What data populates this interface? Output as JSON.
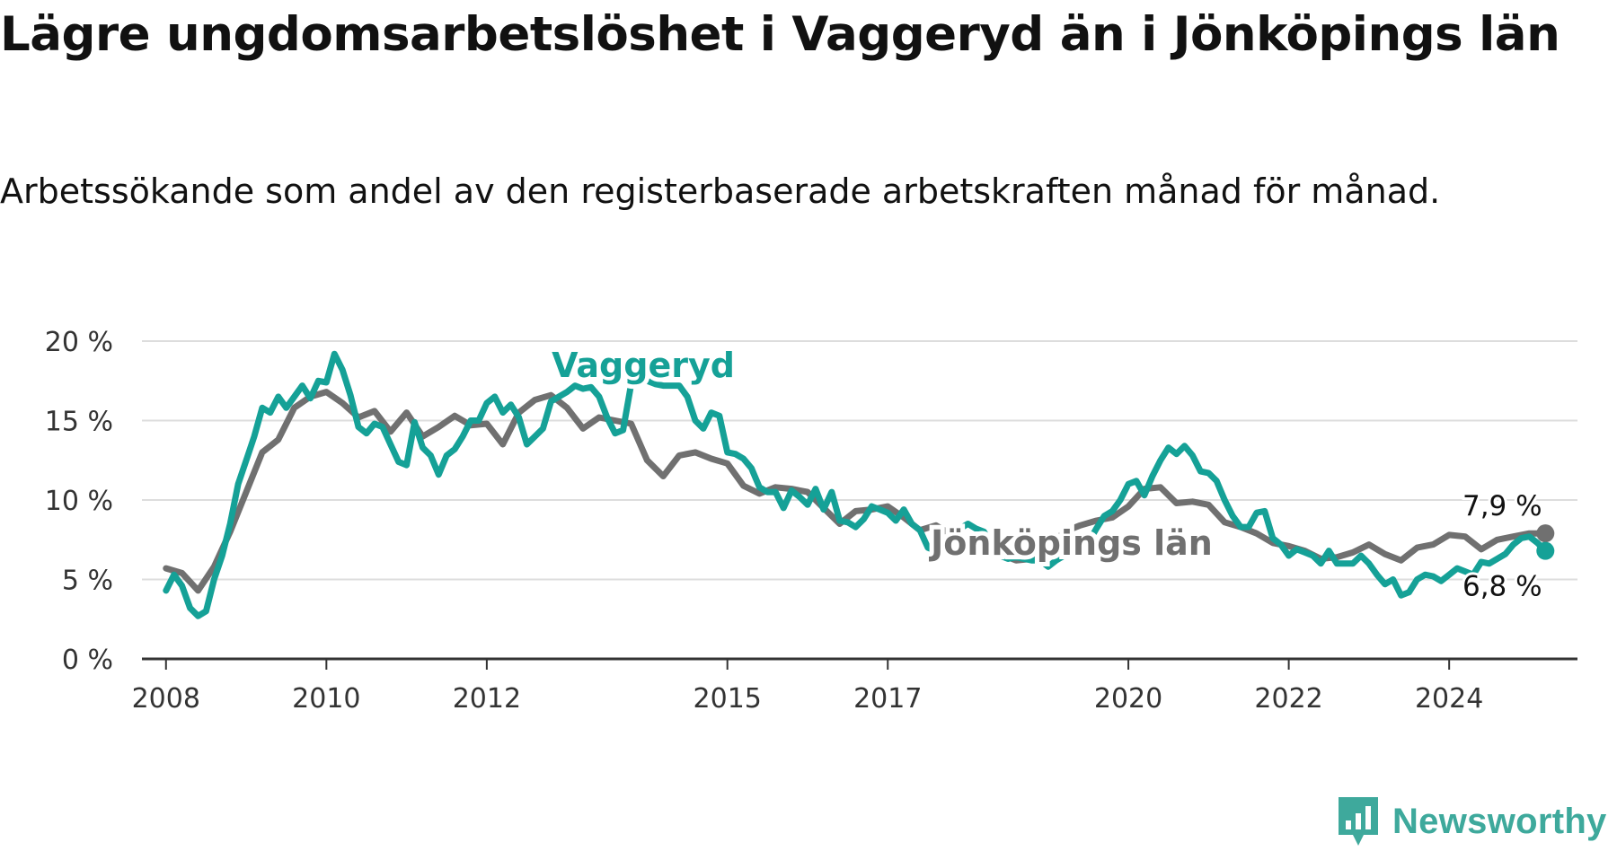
{
  "title": "Lägre ungdomsarbetslöshet i Vaggeryd än i Jönköpings län",
  "subtitle": "Arbetssökande som andel av den registerbaserade arbetskraften månad för månad.",
  "brand": "Newsworthy",
  "colors": {
    "vaggeryd": "#15a197",
    "lan": "#707070",
    "grid": "#dddddd",
    "axis": "#333333",
    "brand": "#3ea99c"
  },
  "chart_data": {
    "type": "line",
    "ylim": [
      0,
      20
    ],
    "y_ticks": [
      0,
      5,
      10,
      15,
      20
    ],
    "y_tick_labels": [
      "0 %",
      "5 %",
      "10 %",
      "15 %",
      "20 %"
    ],
    "xlim": [
      2007.7,
      2025.6
    ],
    "x_ticks": [
      2008,
      2010,
      2012,
      2015,
      2017,
      2020,
      2022,
      2024
    ],
    "x_tick_labels": [
      "2008",
      "2010",
      "2012",
      "2015",
      "2017",
      "2020",
      "2022",
      "2024"
    ],
    "grid": true,
    "series": [
      {
        "name": "Jönköpings län",
        "color_key": "lan",
        "end_label": "7,9 %",
        "x": [
          2008.0,
          2008.2,
          2008.4,
          2008.6,
          2008.8,
          2009.0,
          2009.2,
          2009.4,
          2009.6,
          2009.8,
          2010.0,
          2010.2,
          2010.4,
          2010.6,
          2010.8,
          2011.0,
          2011.2,
          2011.4,
          2011.6,
          2011.8,
          2012.0,
          2012.2,
          2012.4,
          2012.6,
          2012.8,
          2013.0,
          2013.2,
          2013.4,
          2013.6,
          2013.8,
          2014.0,
          2014.2,
          2014.4,
          2014.6,
          2014.8,
          2015.0,
          2015.2,
          2015.4,
          2015.6,
          2015.8,
          2016.0,
          2016.2,
          2016.4,
          2016.6,
          2016.8,
          2017.0,
          2017.2,
          2017.4,
          2017.6,
          2017.8,
          2018.0,
          2018.2,
          2018.4,
          2018.6,
          2018.8,
          2019.0,
          2019.2,
          2019.4,
          2019.6,
          2019.8,
          2020.0,
          2020.2,
          2020.4,
          2020.6,
          2020.8,
          2021.0,
          2021.2,
          2021.4,
          2021.6,
          2021.8,
          2022.0,
          2022.2,
          2022.4,
          2022.6,
          2022.8,
          2023.0,
          2023.2,
          2023.4,
          2023.6,
          2023.8,
          2024.0,
          2024.2,
          2024.4,
          2024.6,
          2024.8,
          2025.0,
          2025.2
        ],
        "values": [
          5.7,
          5.4,
          4.3,
          5.8,
          8.0,
          10.5,
          13.0,
          13.8,
          15.8,
          16.5,
          16.8,
          16.1,
          15.2,
          15.6,
          14.3,
          15.5,
          14.0,
          14.6,
          15.3,
          14.7,
          14.8,
          13.5,
          15.5,
          16.3,
          16.6,
          15.8,
          14.5,
          15.2,
          15.0,
          14.8,
          12.5,
          11.5,
          12.8,
          13.0,
          12.6,
          12.3,
          10.9,
          10.4,
          10.8,
          10.7,
          10.5,
          9.5,
          8.5,
          9.3,
          9.4,
          9.6,
          8.9,
          8.1,
          8.4,
          7.8,
          7.0,
          6.8,
          6.6,
          6.2,
          6.3,
          6.9,
          8.0,
          8.4,
          8.7,
          8.9,
          9.6,
          10.7,
          10.8,
          9.8,
          9.9,
          9.7,
          8.6,
          8.3,
          7.9,
          7.3,
          7.1,
          6.8,
          6.3,
          6.4,
          6.7,
          7.2,
          6.6,
          6.2,
          7.0,
          7.2,
          7.8,
          7.7,
          6.9,
          7.5,
          7.7,
          7.9,
          7.9
        ]
      },
      {
        "name": "Vaggeryd",
        "color_key": "vaggeryd",
        "end_label": "6,8 %",
        "x": [
          2008.0,
          2008.1,
          2008.2,
          2008.3,
          2008.4,
          2008.5,
          2008.6,
          2008.7,
          2008.8,
          2008.9,
          2009.0,
          2009.1,
          2009.2,
          2009.3,
          2009.4,
          2009.5,
          2009.6,
          2009.7,
          2009.8,
          2009.9,
          2010.0,
          2010.1,
          2010.2,
          2010.3,
          2010.4,
          2010.5,
          2010.6,
          2010.7,
          2010.8,
          2010.9,
          2011.0,
          2011.1,
          2011.2,
          2011.3,
          2011.4,
          2011.5,
          2011.6,
          2011.7,
          2011.8,
          2011.9,
          2012.0,
          2012.1,
          2012.2,
          2012.3,
          2012.4,
          2012.5,
          2012.6,
          2012.7,
          2012.8,
          2012.9,
          2013.0,
          2013.1,
          2013.2,
          2013.3,
          2013.4,
          2013.5,
          2013.6,
          2013.7,
          2013.8,
          2013.9,
          2014.0,
          2014.1,
          2014.2,
          2014.3,
          2014.4,
          2014.5,
          2014.6,
          2014.7,
          2014.8,
          2014.9,
          2015.0,
          2015.1,
          2015.2,
          2015.3,
          2015.4,
          2015.5,
          2015.6,
          2015.7,
          2015.8,
          2015.9,
          2016.0,
          2016.1,
          2016.2,
          2016.3,
          2016.4,
          2016.5,
          2016.6,
          2016.7,
          2016.8,
          2016.9,
          2017.0,
          2017.1,
          2017.2,
          2017.3,
          2017.4,
          2017.5,
          2017.6,
          2017.7,
          2017.8,
          2017.9,
          2018.0,
          2018.1,
          2018.2,
          2018.3,
          2018.4,
          2018.5,
          2018.6,
          2018.7,
          2018.8,
          2018.9,
          2019.0,
          2019.1,
          2019.2,
          2019.3,
          2019.4,
          2019.5,
          2019.6,
          2019.7,
          2019.8,
          2019.9,
          2020.0,
          2020.1,
          2020.2,
          2020.3,
          2020.4,
          2020.5,
          2020.6,
          2020.7,
          2020.8,
          2020.9,
          2021.0,
          2021.1,
          2021.2,
          2021.3,
          2021.4,
          2021.5,
          2021.6,
          2021.7,
          2021.8,
          2021.9,
          2022.0,
          2022.1,
          2022.2,
          2022.3,
          2022.4,
          2022.5,
          2022.6,
          2022.7,
          2022.8,
          2022.9,
          2023.0,
          2023.1,
          2023.2,
          2023.3,
          2023.4,
          2023.5,
          2023.6,
          2023.7,
          2023.8,
          2023.9,
          2024.0,
          2024.1,
          2024.2,
          2024.3,
          2024.4,
          2024.5,
          2024.6,
          2024.7,
          2024.8,
          2024.9,
          2025.0,
          2025.1,
          2025.2
        ],
        "values": [
          4.3,
          5.3,
          4.6,
          3.2,
          2.7,
          3.0,
          5.0,
          6.5,
          8.5,
          11.0,
          12.5,
          14.0,
          15.8,
          15.5,
          16.5,
          15.8,
          16.5,
          17.2,
          16.4,
          17.5,
          17.4,
          19.2,
          18.2,
          16.6,
          14.6,
          14.2,
          14.8,
          14.6,
          13.5,
          12.4,
          12.2,
          14.9,
          13.3,
          12.8,
          11.6,
          12.8,
          13.2,
          14.0,
          15.0,
          15.0,
          16.1,
          16.5,
          15.5,
          16.0,
          15.2,
          13.5,
          14.0,
          14.5,
          16.2,
          16.5,
          16.8,
          17.2,
          17.0,
          17.1,
          16.5,
          15.2,
          14.2,
          14.4,
          17.3,
          17.6,
          17.5,
          17.3,
          17.2,
          17.2,
          17.2,
          16.5,
          15.0,
          14.5,
          15.5,
          15.3,
          13.0,
          12.9,
          12.6,
          12.0,
          10.8,
          10.5,
          10.5,
          9.5,
          10.6,
          10.2,
          9.7,
          10.7,
          9.4,
          10.5,
          8.7,
          8.6,
          8.3,
          8.8,
          9.6,
          9.4,
          9.2,
          8.7,
          9.4,
          8.5,
          8.1,
          7.0,
          6.8,
          6.8,
          8.0,
          8.2,
          8.5,
          8.2,
          8.0,
          7.1,
          6.5,
          6.3,
          6.4,
          6.3,
          6.2,
          6.2,
          5.8,
          6.2,
          6.5,
          6.9,
          7.0,
          7.3,
          8.2,
          9.0,
          9.3,
          10.0,
          11.0,
          11.2,
          10.3,
          11.5,
          12.5,
          13.3,
          12.9,
          13.4,
          12.8,
          11.8,
          11.7,
          11.2,
          10.0,
          9.0,
          8.3,
          8.3,
          9.2,
          9.3,
          7.6,
          7.2,
          6.5,
          6.9,
          6.7,
          6.5,
          6.0,
          6.8,
          6.0,
          6.0,
          6.0,
          6.5,
          6.0,
          5.3,
          4.7,
          5.0,
          4.0,
          4.2,
          5.0,
          5.3,
          5.2,
          4.9,
          5.3,
          5.7,
          5.5,
          5.3,
          6.1,
          6.0,
          6.3,
          6.6,
          7.2,
          7.6,
          7.7,
          7.3,
          6.8
        ]
      }
    ],
    "annotations": [
      {
        "text": "Vaggeryd",
        "series": "Vaggeryd"
      },
      {
        "text": "Jönköpings län",
        "series": "Jönköpings län"
      }
    ]
  }
}
